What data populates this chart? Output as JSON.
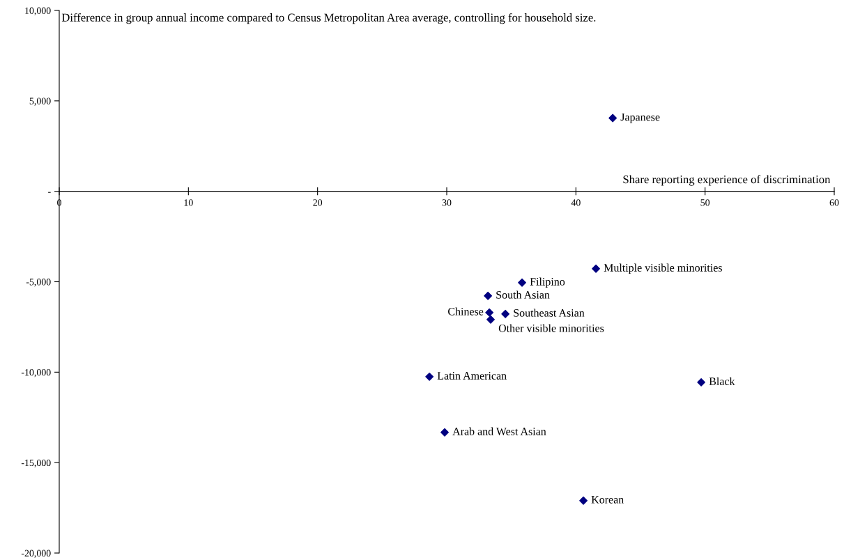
{
  "chart_data": {
    "type": "scatter",
    "xlabel": "Share reporting experience of discrimination",
    "ylabel": "Difference in group annual income compared to Census Metropolitan Area average, controlling for household size.",
    "series": [
      {
        "color": "#000080",
        "x": [
          42.85,
          41.55,
          35.83,
          33.19,
          33.3,
          34.54,
          33.4,
          28.66,
          49.7,
          29.84,
          40.58
        ],
        "values": [
          4050,
          -4280,
          -5050,
          -5780,
          -6700,
          -6780,
          -7090,
          -10250,
          -10560,
          -13330,
          -17100
        ]
      }
    ],
    "annotations": [
      {
        "text": "Japanese",
        "x": 42.85,
        "y": 4050
      },
      {
        "text": "Multiple visible minorities",
        "x": 41.55,
        "y": -4280
      },
      {
        "text": "Filipino",
        "x": 35.83,
        "y": -5050
      },
      {
        "text": "South Asian",
        "x": 33.19,
        "y": -5780
      },
      {
        "text": "Chinese",
        "x": 33.3,
        "y": -6700
      },
      {
        "text": "Southeast Asian",
        "x": 34.54,
        "y": -6780
      },
      {
        "text": "Other visible minorities",
        "x": 33.4,
        "y": -7090
      },
      {
        "text": "Latin American",
        "x": 28.66,
        "y": -10250
      },
      {
        "text": "Black",
        "x": 49.7,
        "y": -10560
      },
      {
        "text": "Arab and West Asian",
        "x": 29.84,
        "y": -13330
      },
      {
        "text": "Korean",
        "x": 40.58,
        "y": -17100
      }
    ],
    "xlim": [
      0,
      60
    ],
    "xticks": [
      0,
      10,
      20,
      30,
      40,
      50,
      60
    ],
    "ylim": [
      -20000,
      10000
    ],
    "yticks": [
      {
        "value": -20000,
        "label": "-20,000"
      },
      {
        "value": -15000,
        "label": "-15,000"
      },
      {
        "value": -10000,
        "label": "-10,000"
      },
      {
        "value": -5000,
        "label": "-5,000"
      },
      {
        "value": 0,
        "label": "-"
      },
      {
        "value": 5000,
        "label": "5,000"
      },
      {
        "value": 10000,
        "label": "10,000"
      }
    ],
    "marker": "diamond",
    "grid": false,
    "legend": false
  }
}
